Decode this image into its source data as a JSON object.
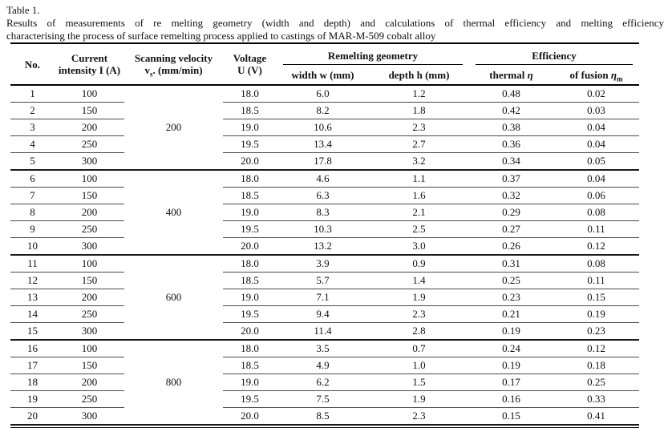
{
  "caption": {
    "label": "Table 1.",
    "line1": "Results of measurements of re melting geometry (width and depth) and calculations of thermal efficiency and melting efficiency",
    "line2": "characterising the process of surface remelting process applied to castings of MAR-M-509 cobalt alloy"
  },
  "header": {
    "no": "No.",
    "current_l1": "Current",
    "current_l2": "intensity I (A)",
    "scanning_l1": "Scanning velocity",
    "scanning_v": "v",
    "scanning_sub": "s",
    "scanning_rest": ". (mm/min)",
    "voltage_l1": "Voltage",
    "voltage_l2": "U (V)",
    "geometry_group": "Remelting geometry",
    "width": "width w (mm)",
    "depth": "depth h (mm)",
    "efficiency_group": "Efficiency",
    "thermal_label": "thermal",
    "thermal_symbol": "η",
    "fusion_label": "of fusion",
    "fusion_symbol": "η",
    "fusion_sub": "m"
  },
  "table": {
    "groups": [
      {
        "velocity": "200",
        "rows": [
          {
            "no": "1",
            "current": "100",
            "voltage": "18.0",
            "width": "6.0",
            "depth": "1.2",
            "thermal": "0.48",
            "fusion": "0.02"
          },
          {
            "no": "2",
            "current": "150",
            "voltage": "18.5",
            "width": "8.2",
            "depth": "1.8",
            "thermal": "0.42",
            "fusion": "0.03"
          },
          {
            "no": "3",
            "current": "200",
            "voltage": "19.0",
            "width": "10.6",
            "depth": "2.3",
            "thermal": "0.38",
            "fusion": "0.04"
          },
          {
            "no": "4",
            "current": "250",
            "voltage": "19.5",
            "width": "13.4",
            "depth": "2.7",
            "thermal": "0.36",
            "fusion": "0.04"
          },
          {
            "no": "5",
            "current": "300",
            "voltage": "20.0",
            "width": "17.8",
            "depth": "3.2",
            "thermal": "0.34",
            "fusion": "0.05"
          }
        ]
      },
      {
        "velocity": "400",
        "rows": [
          {
            "no": "6",
            "current": "100",
            "voltage": "18.0",
            "width": "4.6",
            "depth": "1.1",
            "thermal": "0.37",
            "fusion": "0.04"
          },
          {
            "no": "7",
            "current": "150",
            "voltage": "18.5",
            "width": "6.3",
            "depth": "1.6",
            "thermal": "0.32",
            "fusion": "0.06"
          },
          {
            "no": "8",
            "current": "200",
            "voltage": "19.0",
            "width": "8.3",
            "depth": "2.1",
            "thermal": "0.29",
            "fusion": "0.08"
          },
          {
            "no": "9",
            "current": "250",
            "voltage": "19.5",
            "width": "10.3",
            "depth": "2.5",
            "thermal": "0.27",
            "fusion": "0.11"
          },
          {
            "no": "10",
            "current": "300",
            "voltage": "20.0",
            "width": "13.2",
            "depth": "3.0",
            "thermal": "0.26",
            "fusion": "0.12"
          }
        ]
      },
      {
        "velocity": "600",
        "rows": [
          {
            "no": "11",
            "current": "100",
            "voltage": "18.0",
            "width": "3.9",
            "depth": "0.9",
            "thermal": "0.31",
            "fusion": "0.08"
          },
          {
            "no": "12",
            "current": "150",
            "voltage": "18.5",
            "width": "5.7",
            "depth": "1.4",
            "thermal": "0.25",
            "fusion": "0.11"
          },
          {
            "no": "13",
            "current": "200",
            "voltage": "19.0",
            "width": "7.1",
            "depth": "1.9",
            "thermal": "0.23",
            "fusion": "0.15"
          },
          {
            "no": "14",
            "current": "250",
            "voltage": "19.5",
            "width": "9.4",
            "depth": "2.3",
            "thermal": "0.21",
            "fusion": "0.19"
          },
          {
            "no": "15",
            "current": "300",
            "voltage": "20.0",
            "width": "11.4",
            "depth": "2.8",
            "thermal": "0.19",
            "fusion": "0.23"
          }
        ]
      },
      {
        "velocity": "800",
        "rows": [
          {
            "no": "16",
            "current": "100",
            "voltage": "18.0",
            "width": "3.5",
            "depth": "0.7",
            "thermal": "0.24",
            "fusion": "0.12"
          },
          {
            "no": "17",
            "current": "150",
            "voltage": "18.5",
            "width": "4.9",
            "depth": "1.0",
            "thermal": "0.19",
            "fusion": "0.18"
          },
          {
            "no": "18",
            "current": "200",
            "voltage": "19.0",
            "width": "6.2",
            "depth": "1.5",
            "thermal": "0.17",
            "fusion": "0.25"
          },
          {
            "no": "19",
            "current": "250",
            "voltage": "19.5",
            "width": "7.5",
            "depth": "1.9",
            "thermal": "0.16",
            "fusion": "0.33"
          },
          {
            "no": "20",
            "current": "300",
            "voltage": "20.0",
            "width": "8.5",
            "depth": "2.3",
            "thermal": "0.15",
            "fusion": "0.41"
          }
        ]
      }
    ]
  }
}
